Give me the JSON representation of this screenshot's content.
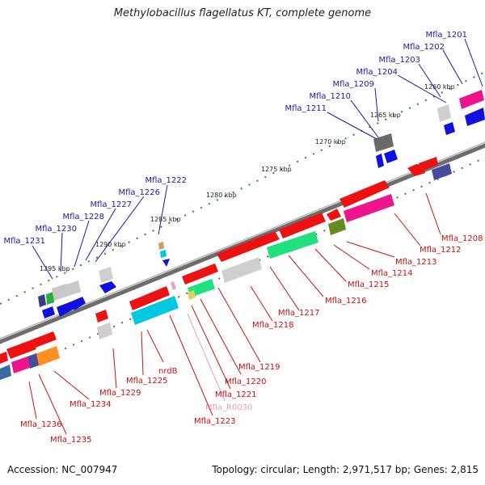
{
  "title": "Methylobacillus flagellatus KT, complete genome",
  "footer": {
    "accession": "Accession: NC_007947",
    "summary": "Topology: circular; Length: 2,971,517 bp; Genes: 2,815"
  },
  "colors": {
    "backbone": "#7a7a7a",
    "tick": "#2e8b2e",
    "forward_label": "#1a1aa6",
    "reverse_label": "#cc1111",
    "rna_label": "#e8a0c0"
  },
  "scale_labels": [
    "1260 kbp",
    "1265 kbp",
    "1270 kbp",
    "1275 kbp",
    "1280 kbp",
    "1285 kbp",
    "1290 kbp",
    "1295 kbp"
  ],
  "forward_genes": [
    "Mfla_1201",
    "Mfla_1202",
    "Mfla_1203",
    "Mfla_1204",
    "Mfla_1209",
    "Mfla_1210",
    "Mfla_1211",
    "Mfla_1222",
    "Mfla_1226",
    "Mfla_1227",
    "Mfla_1228",
    "Mfla_1230",
    "Mfla_1231"
  ],
  "reverse_genes": [
    "Mfla_1208",
    "Mfla_1212",
    "Mfla_1213",
    "Mfla_1214",
    "Mfla_1215",
    "Mfla_1216",
    "Mfla_1217",
    "Mfla_1218",
    "Mfla_1219",
    "Mfla_1220",
    "Mfla_1221",
    "Mfla_R0030",
    "Mfla_1223",
    "nrdB",
    "Mfla_1225",
    "Mfla_1229",
    "Mfla_1234",
    "Mfla_1235",
    "Mfla_1236"
  ]
}
